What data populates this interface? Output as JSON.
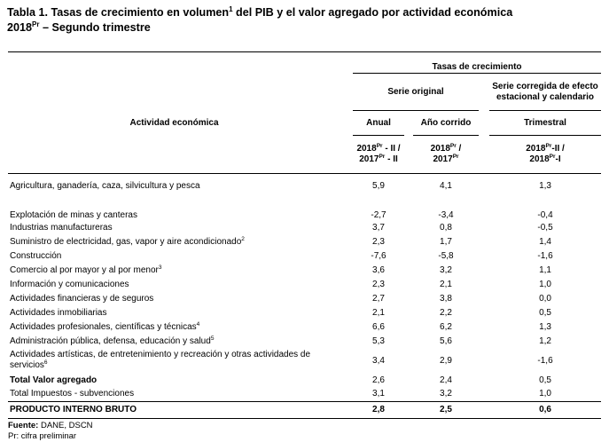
{
  "title": {
    "main": "Tabla 1. Tasas de crecimiento en volumen",
    "main_sup": "1",
    "main_rest": " del PIB y el valor agregado por actividad económica",
    "year": "2018",
    "year_sup": "Pr",
    "year_rest": " – Segundo trimestre"
  },
  "header": {
    "tasas": "Tasas de crecimiento",
    "activity": "Actividad económica",
    "serie_original": "Serie original",
    "serie_corregida": "Serie corregida de efecto estacional y calendario",
    "anual": "Anual",
    "ano_corrido": "Año corrido",
    "trimestral": "Trimestral",
    "p1_l1a": "2018",
    "p1_l1s": "Pr",
    "p1_l1b": " - II /",
    "p1_l2a": "2017",
    "p1_l2s": "Pr",
    "p1_l2b": " - II",
    "p2_l1a": "2018",
    "p2_l1s": "Pr",
    "p2_l1b": " /",
    "p2_l2a": "2017",
    "p2_l2s": "Pr",
    "p2_l2b": "",
    "p3_l1a": "2018",
    "p3_l1s": "Pr",
    "p3_l1b": "-II /",
    "p3_l2a": "2018",
    "p3_l2s": "Pr",
    "p3_l2b": "-I"
  },
  "rows": [
    {
      "label": "Agricultura, ganadería, caza, silvicultura y pesca",
      "sup": "",
      "anual": "5,9",
      "corrido": "4,1",
      "trimestral": "1,3"
    },
    {
      "label": "Explotación de minas y canteras",
      "sup": "",
      "anual": "-2,7",
      "corrido": "-3,4",
      "trimestral": "-0,4"
    },
    {
      "label": "Industrias manufactureras",
      "sup": "",
      "anual": "3,7",
      "corrido": "0,8",
      "trimestral": "-0,5"
    },
    {
      "label": "Suministro de electricidad, gas, vapor y aire acondicionado",
      "sup": "2",
      "anual": "2,3",
      "corrido": "1,7",
      "trimestral": "1,4"
    },
    {
      "label": "Construcción",
      "sup": "",
      "anual": "-7,6",
      "corrido": "-5,8",
      "trimestral": "-1,6"
    },
    {
      "label": "Comercio al por mayor y al por menor",
      "sup": "3",
      "anual": "3,6",
      "corrido": "3,2",
      "trimestral": "1,1"
    },
    {
      "label": "Información y comunicaciones",
      "sup": "",
      "anual": "2,3",
      "corrido": "2,1",
      "trimestral": "1,0"
    },
    {
      "label": "Actividades financieras y de seguros",
      "sup": "",
      "anual": "2,7",
      "corrido": "3,8",
      "trimestral": "0,0"
    },
    {
      "label": "Actividades inmobiliarias",
      "sup": "",
      "anual": "2,1",
      "corrido": "2,2",
      "trimestral": "0,5"
    },
    {
      "label": "Actividades profesionales, científicas y técnicas",
      "sup": "4",
      "anual": "6,6",
      "corrido": "6,2",
      "trimestral": "1,3"
    },
    {
      "label": "Administración pública, defensa, educación y salud",
      "sup": "5",
      "anual": "5,3",
      "corrido": "5,6",
      "trimestral": "1,2"
    },
    {
      "label": "Actividades artísticas, de entretenimiento y recreación y otras actividades de servicios",
      "sup": "6",
      "anual": "3,4",
      "corrido": "2,9",
      "trimestral": "-1,6"
    },
    {
      "label": "Total Valor agregado",
      "sup": "",
      "anual": "2,6",
      "corrido": "2,4",
      "trimestral": "0,5"
    },
    {
      "label": "Total Impuestos - subvenciones",
      "sup": "",
      "anual": "3,1",
      "corrido": "3,2",
      "trimestral": "1,0"
    }
  ],
  "total": {
    "label": "PRODUCTO INTERNO BRUTO",
    "anual": "2,8",
    "corrido": "2,5",
    "trimestral": "0,6"
  },
  "notes": {
    "fuente_label": "Fuente:",
    "fuente_value": " DANE, DSCN",
    "pr": "Pr: cifra preliminar"
  }
}
